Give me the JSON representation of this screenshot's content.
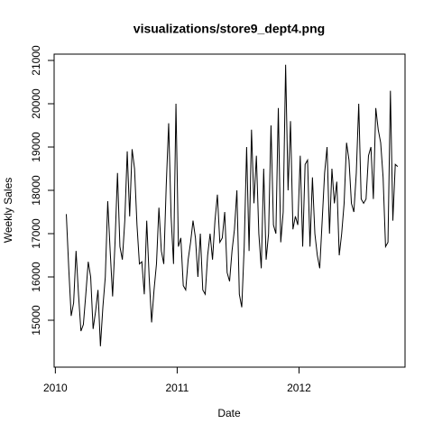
{
  "chart_data": {
    "type": "line",
    "title": "visualizations/store9_dept4.png",
    "xlabel": "Date",
    "ylabel": "Weekly Sales",
    "xlim": [
      2009.99,
      2012.87
    ],
    "ylim": [
      13917,
      21146
    ],
    "xticks": [
      2010,
      2011,
      2012
    ],
    "yticks": [
      15000,
      16000,
      17000,
      18000,
      19000,
      20000,
      21000
    ],
    "x": [
      2010.09,
      2010.11,
      2010.13,
      2010.15,
      2010.17,
      2010.19,
      2010.21,
      2010.23,
      2010.25,
      2010.27,
      2010.29,
      2010.31,
      2010.33,
      2010.35,
      2010.37,
      2010.39,
      2010.41,
      2010.43,
      2010.45,
      2010.47,
      2010.49,
      2010.51,
      2010.53,
      2010.55,
      2010.57,
      2010.59,
      2010.61,
      2010.63,
      2010.65,
      2010.67,
      2010.69,
      2010.71,
      2010.73,
      2010.75,
      2010.77,
      2010.79,
      2010.81,
      2010.83,
      2010.85,
      2010.87,
      2010.89,
      2010.91,
      2010.93,
      2010.95,
      2010.97,
      2010.99,
      2011.01,
      2011.03,
      2011.05,
      2011.07,
      2011.09,
      2011.11,
      2011.13,
      2011.15,
      2011.17,
      2011.19,
      2011.21,
      2011.23,
      2011.25,
      2011.27,
      2011.29,
      2011.31,
      2011.33,
      2011.35,
      2011.37,
      2011.39,
      2011.41,
      2011.43,
      2011.45,
      2011.47,
      2011.49,
      2011.51,
      2011.53,
      2011.55,
      2011.57,
      2011.59,
      2011.61,
      2011.63,
      2011.65,
      2011.67,
      2011.69,
      2011.71,
      2011.73,
      2011.75,
      2011.77,
      2011.79,
      2011.81,
      2011.83,
      2011.85,
      2011.87,
      2011.89,
      2011.91,
      2011.93,
      2011.95,
      2011.97,
      2011.99,
      2012.01,
      2012.03,
      2012.05,
      2012.07,
      2012.09,
      2012.11,
      2012.13,
      2012.15,
      2012.17,
      2012.19,
      2012.21,
      2012.23,
      2012.25,
      2012.27,
      2012.29,
      2012.31,
      2012.33,
      2012.35,
      2012.37,
      2012.39,
      2012.41,
      2012.43,
      2012.45,
      2012.47,
      2012.49,
      2012.51,
      2012.53,
      2012.55,
      2012.57,
      2012.59,
      2012.61,
      2012.63,
      2012.65,
      2012.67,
      2012.69,
      2012.71,
      2012.73,
      2012.75,
      2012.77,
      2012.79,
      2012.81
    ],
    "series": [
      {
        "name": "Weekly Sales",
        "color": "#000000",
        "values": [
          17450,
          16200,
          15100,
          15400,
          16600,
          15600,
          14750,
          14900,
          15600,
          16350,
          16000,
          14800,
          15200,
          15700,
          14400,
          15300,
          16000,
          17750,
          16600,
          15550,
          16800,
          18400,
          16700,
          16400,
          17300,
          18900,
          17400,
          18950,
          18500,
          17200,
          16300,
          16350,
          15600,
          17300,
          16000,
          14950,
          15700,
          16300,
          17600,
          16600,
          16300,
          18100,
          19550,
          17400,
          16300,
          20000,
          16700,
          16900,
          15800,
          15700,
          16400,
          16800,
          17300,
          16900,
          16000,
          17000,
          15700,
          15600,
          16500,
          17000,
          16400,
          17300,
          17900,
          16800,
          16900,
          17500,
          16100,
          15900,
          16600,
          17100,
          18000,
          15600,
          15300,
          16700,
          19000,
          16600,
          19400,
          17700,
          18800,
          17000,
          16200,
          18500,
          16400,
          17000,
          19500,
          17200,
          17000,
          19900,
          16800,
          17500,
          20900,
          18000,
          19600,
          17100,
          17400,
          17200,
          18800,
          16700,
          18600,
          18700,
          16700,
          18300,
          17000,
          16500,
          16200,
          17300,
          18400,
          19000,
          17000,
          18500,
          17700,
          18200,
          16500,
          17000,
          17700,
          19100,
          18700,
          17700,
          17500,
          18400,
          20000,
          17800,
          17700,
          17800,
          18800,
          19000,
          17800,
          19900,
          19400,
          19100,
          18300,
          16700,
          16800,
          20300,
          17300,
          18600,
          18550
        ]
      }
    ]
  }
}
